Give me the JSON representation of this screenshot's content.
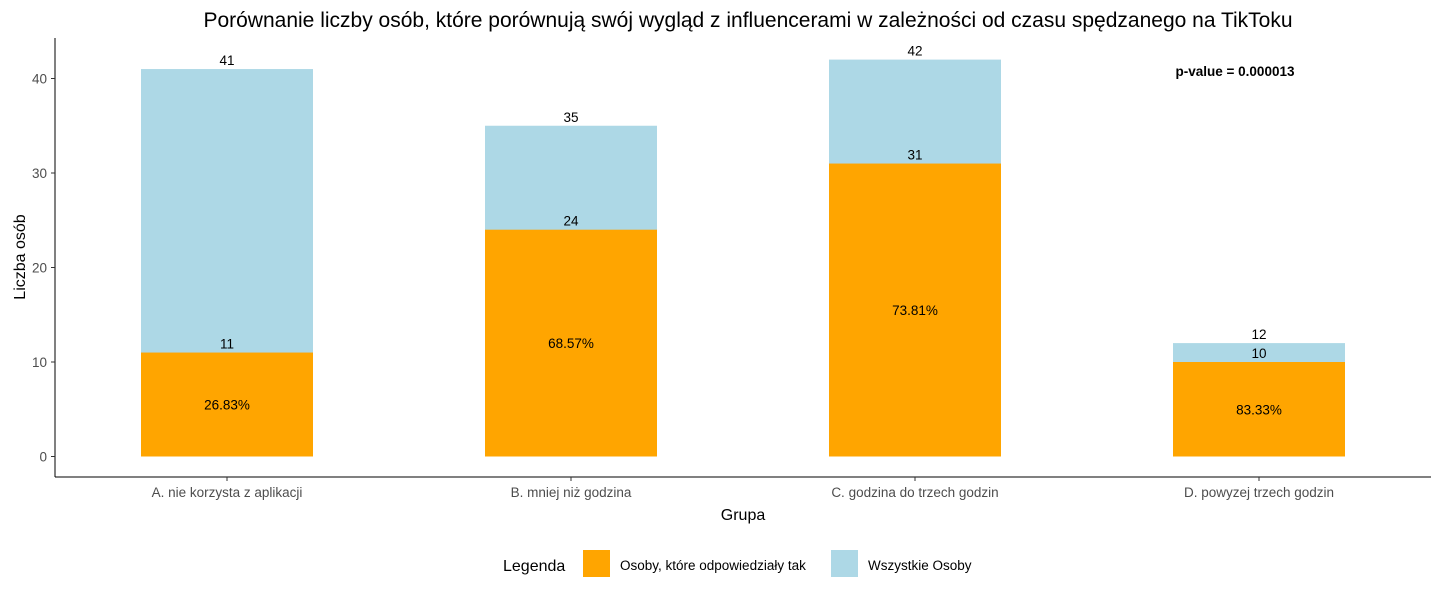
{
  "chart_data": {
    "type": "bar",
    "stacked": false,
    "overlay": true,
    "title": "Porównanie liczby osób, które porównują swój wygląd z influencerami w zależności od czasu spędzanego na TikToku",
    "xlabel": "Grupa",
    "ylabel": "Liczba osób",
    "ylim": [
      0,
      44
    ],
    "yticks": [
      0,
      10,
      20,
      30,
      40
    ],
    "categories": [
      "A. nie korzysta z aplikacji",
      "B. mniej niż godzina",
      "C. godzina do trzech godzin",
      "D. powyzej trzech godzin"
    ],
    "series": [
      {
        "name": "Wszystkie Osoby",
        "values": [
          41,
          35,
          42,
          12
        ],
        "color": "#ADD8E6"
      },
      {
        "name": "Osoby, które odpowiedziały tak",
        "values": [
          11,
          24,
          31,
          10
        ],
        "color": "#FFA500"
      }
    ],
    "percent_labels": [
      "26.83%",
      "68.57%",
      "73.81%",
      "83.33%"
    ],
    "annotation": "p-value = 0.000013",
    "legend": {
      "title": "Legenda",
      "position": "bottom",
      "items": [
        "Osoby, które odpowiedziały tak",
        "Wszystkie Osoby"
      ]
    },
    "grid": false
  }
}
